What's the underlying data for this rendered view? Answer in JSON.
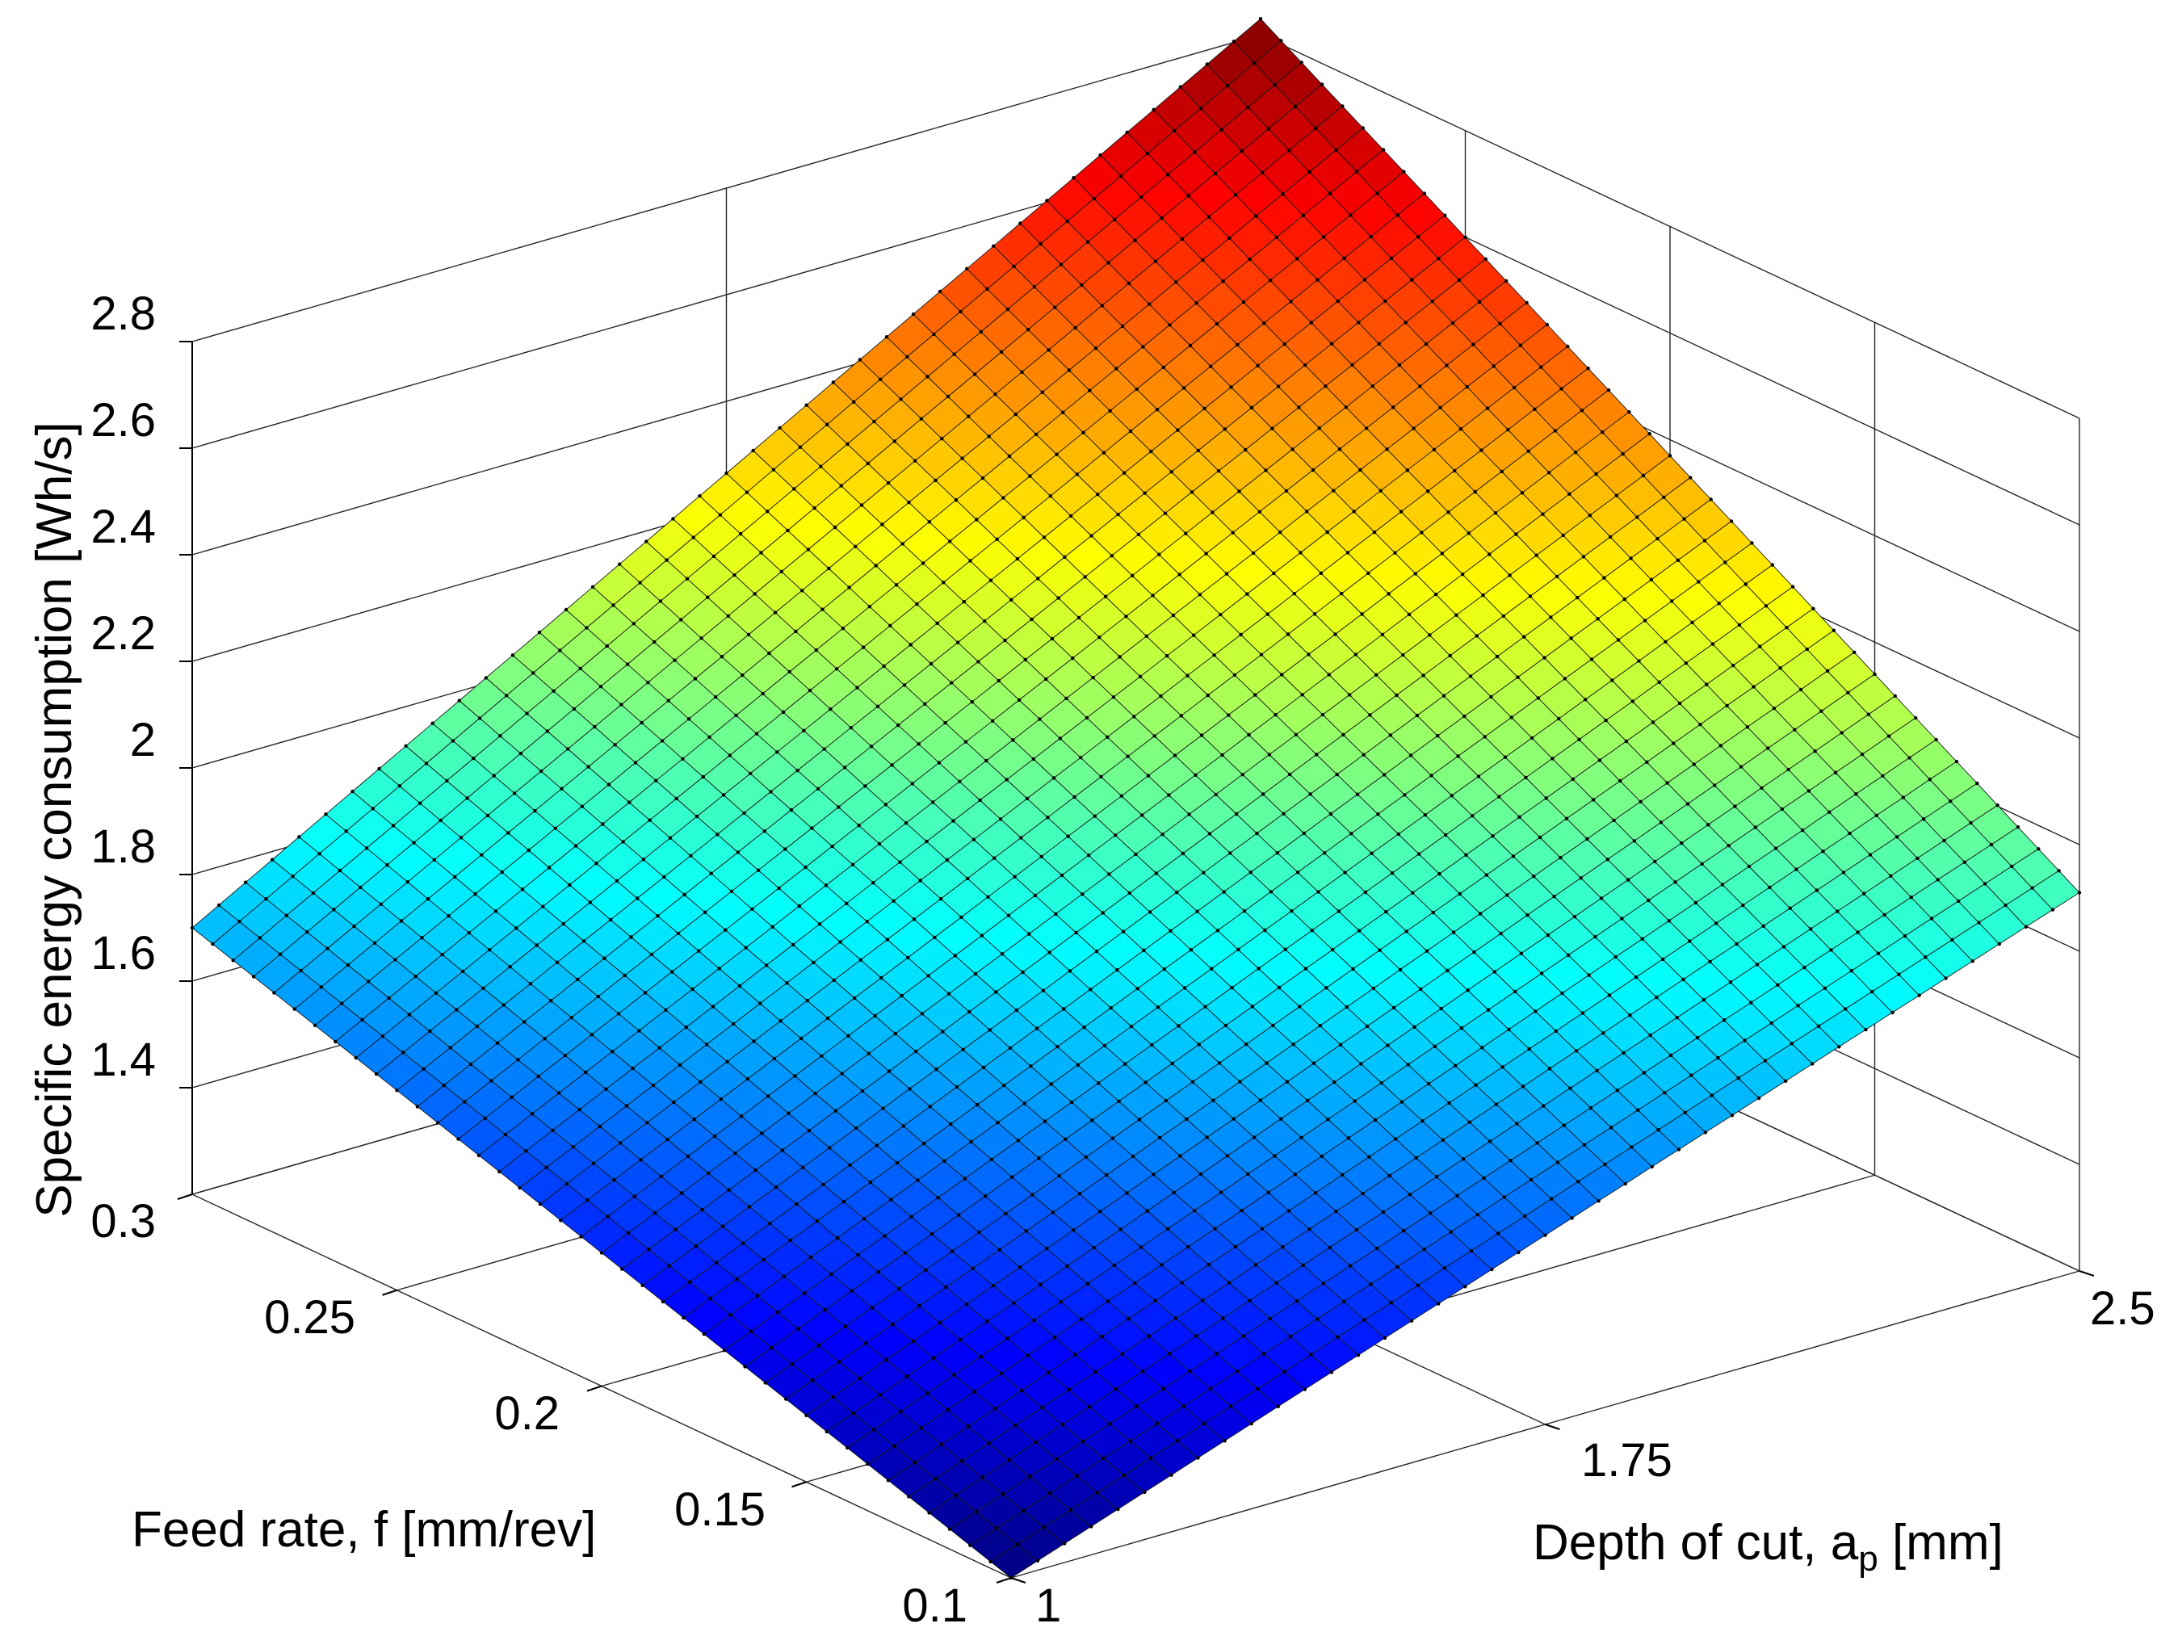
{
  "chart_data": {
    "type": "surface",
    "xlabel": "Feed rate, f [mm/rev]",
    "ylabel_main": "Depth of cut, a",
    "ylabel_sub": "p",
    "ylabel_unit": " [mm]",
    "zlabel": "Specific energy consumption [Wh/s]",
    "xlim": [
      0.1,
      0.3
    ],
    "ylim": [
      1,
      2.5
    ],
    "zlim": [
      1.2,
      2.8
    ],
    "x_ticks": [
      0.1,
      0.15,
      0.2,
      0.25,
      0.3
    ],
    "x_tick_labels": [
      "0.1",
      "0.15",
      "0.2",
      "0.25",
      "0.3"
    ],
    "y_ticks": [
      1,
      1.75,
      2.5
    ],
    "y_tick_labels": [
      "1",
      "1.75",
      "2.5"
    ],
    "z_ticks": [
      1.4,
      1.6,
      1.8,
      2.0,
      2.2,
      2.4,
      2.6,
      2.8
    ],
    "z_tick_labels": [
      "1.4",
      "1.6",
      "1.8",
      "2",
      "2.2",
      "2.4",
      "2.6",
      "2.8"
    ],
    "corners": [
      {
        "f": 0.1,
        "ap": 1,
        "z": 1.2
      },
      {
        "f": 0.3,
        "ap": 1,
        "z": 1.7
      },
      {
        "f": 0.1,
        "ap": 2.5,
        "z": 1.91
      },
      {
        "f": 0.3,
        "ap": 2.5,
        "z": 2.83
      }
    ],
    "grid_count": 40,
    "colormap": "jet",
    "grid": true
  }
}
